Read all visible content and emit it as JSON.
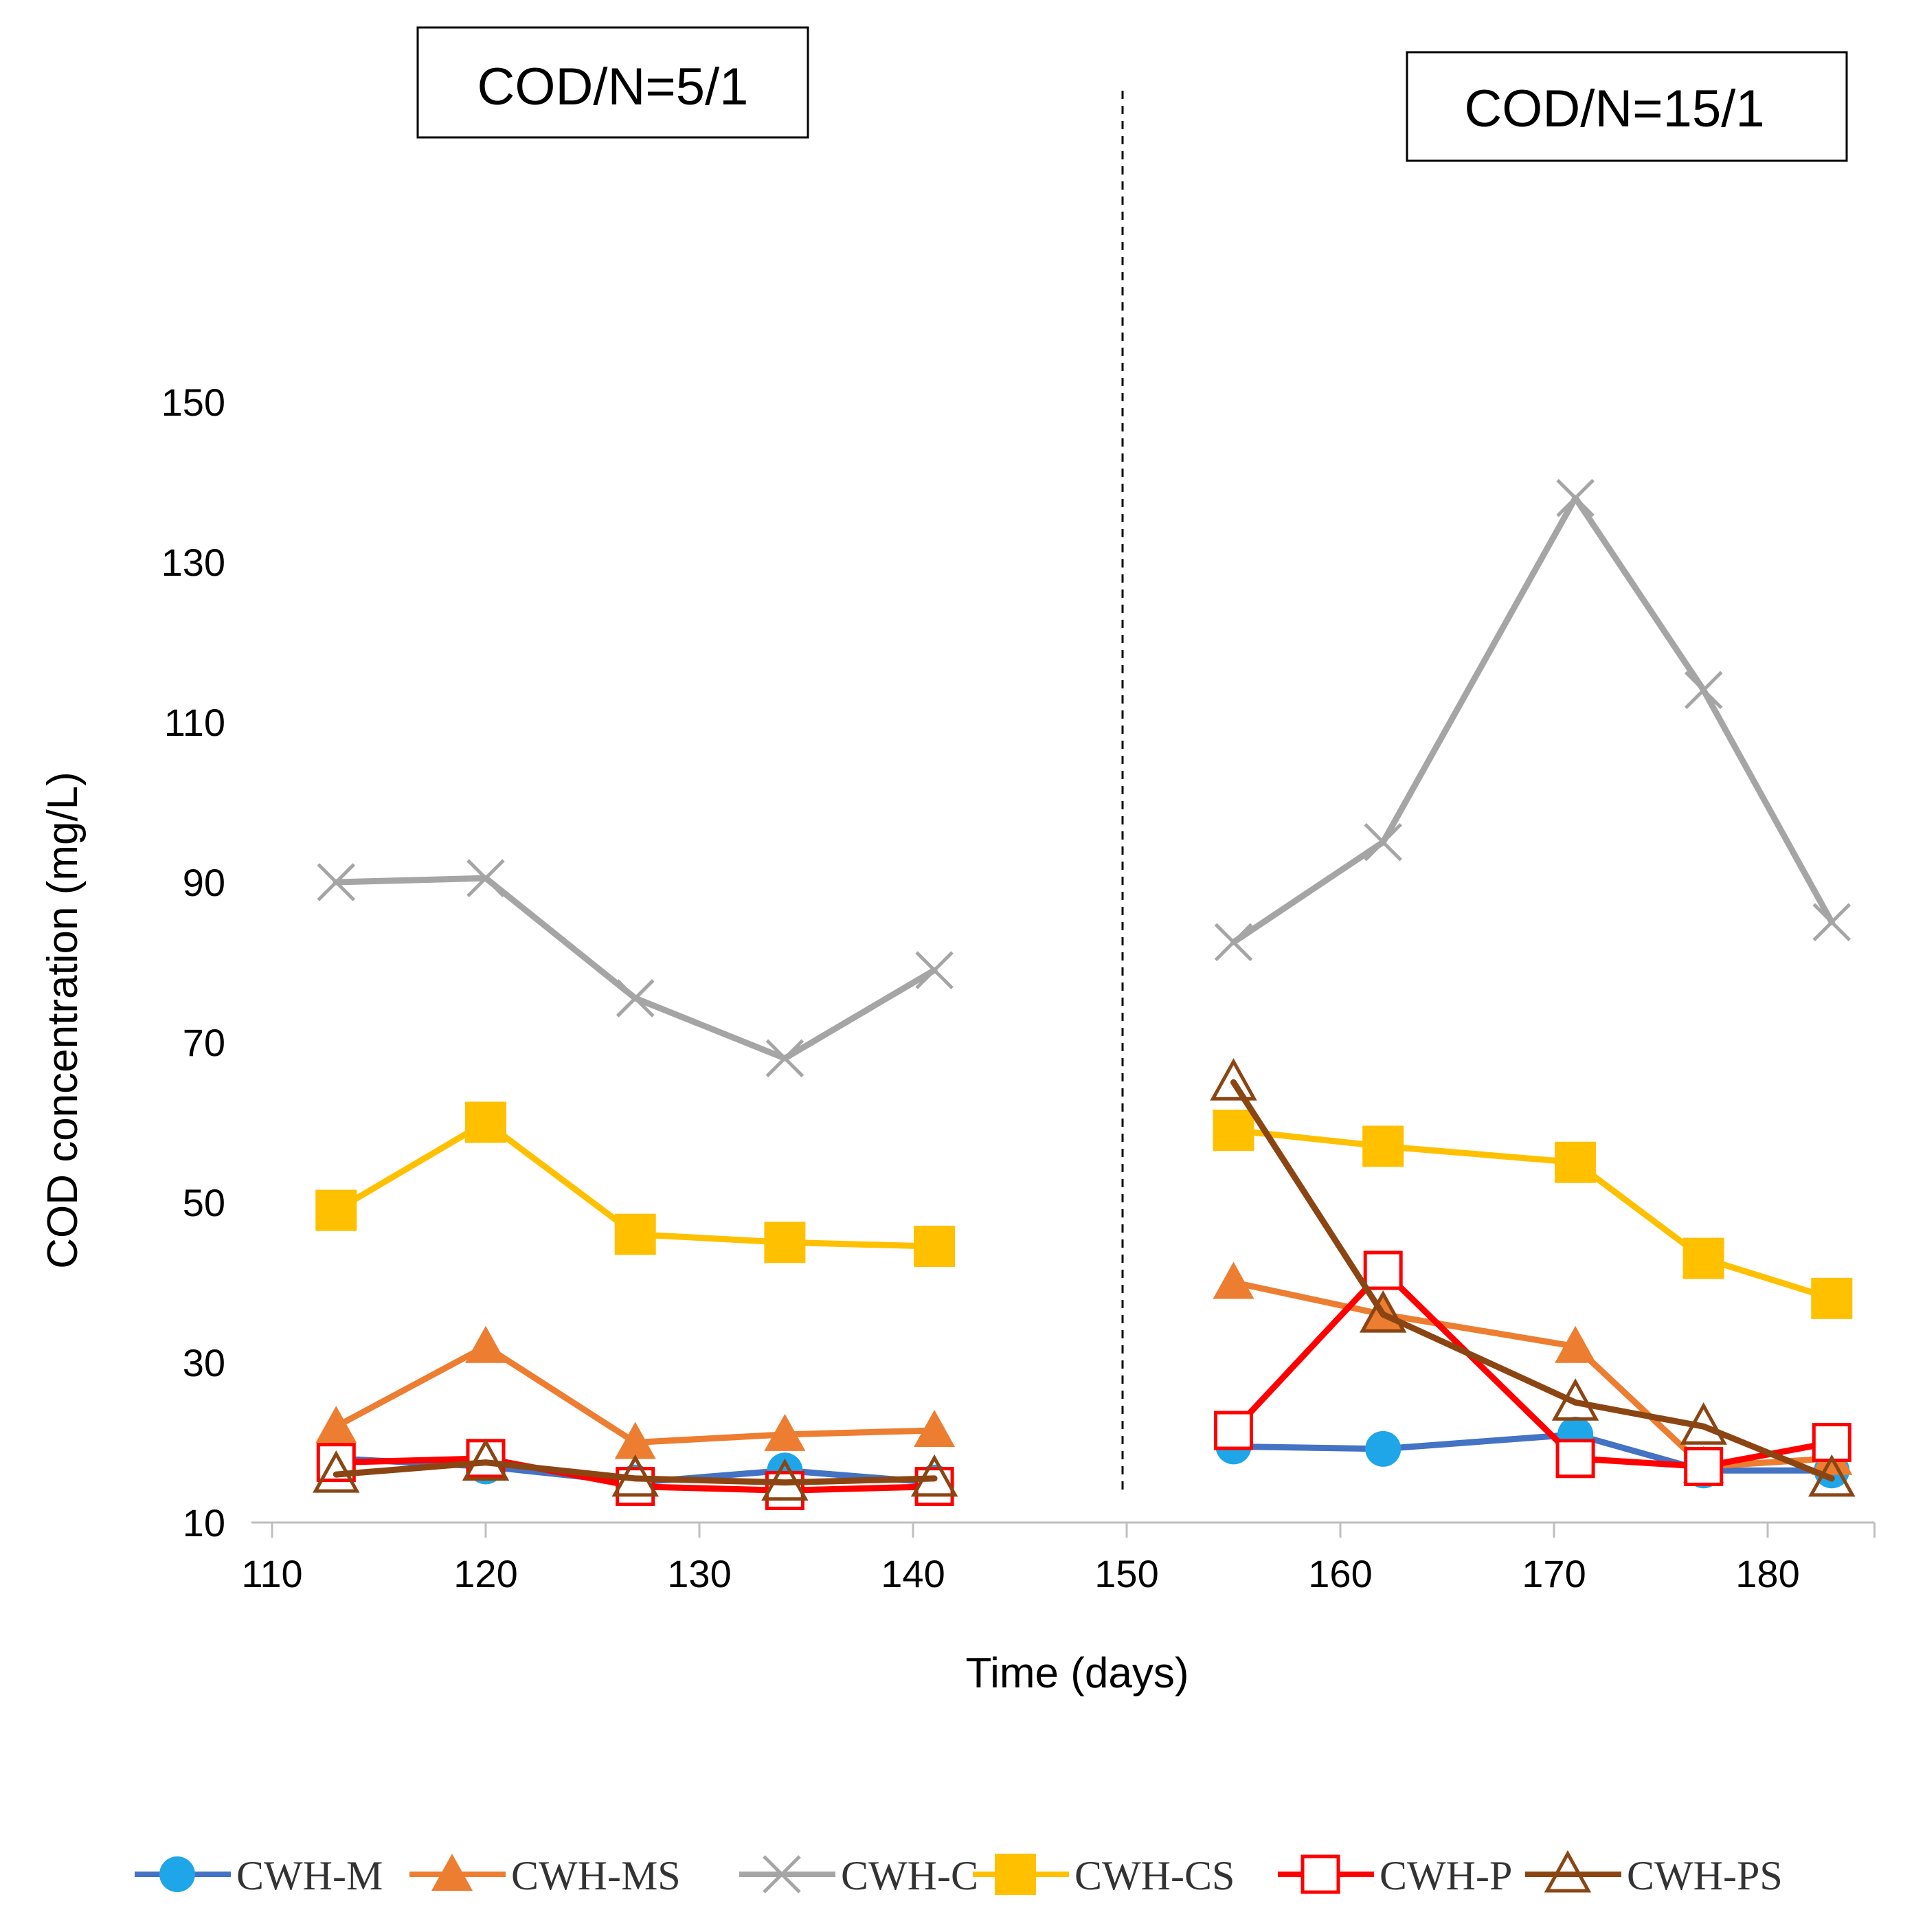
{
  "chart_data": {
    "type": "line",
    "xlabel": "Time (days)",
    "ylabel": "COD concentration (mg/L)",
    "xlim": [
      110,
      185
    ],
    "ylim": [
      10,
      160
    ],
    "x_ticks": [
      110,
      120,
      130,
      140,
      150,
      160,
      170,
      180
    ],
    "y_ticks": [
      10,
      30,
      50,
      70,
      90,
      110,
      130,
      150
    ],
    "grid": false,
    "legend_position": "bottom",
    "phase_divider_x": 150,
    "phase_labels": [
      "COD/N=5/1",
      "COD/N=15/1"
    ],
    "series": [
      {
        "name": "CWH-M",
        "color": "#1ea6e8",
        "line_color": "#4472c4",
        "marker": "circle-filled",
        "segments": [
          {
            "x": [
              113,
              120,
              127,
              134,
              141
            ],
            "y": [
              18,
              17,
              15,
              16.5,
              15
            ]
          },
          {
            "x": [
              155,
              162,
              171,
              177,
              183
            ],
            "y": [
              19.5,
              19.2,
              21,
              16.5,
              16.5
            ]
          }
        ]
      },
      {
        "name": "CWH-MS",
        "color": "#ed7d31",
        "line_color": "#ed7d31",
        "marker": "triangle-filled",
        "segments": [
          {
            "x": [
              113,
              120,
              127,
              134,
              141
            ],
            "y": [
              22,
              32,
              20,
              21,
              21.5
            ]
          },
          {
            "x": [
              155,
              162,
              171,
              177,
              183
            ],
            "y": [
              40,
              36,
              32,
              17,
              18
            ]
          }
        ]
      },
      {
        "name": "CWH-C",
        "color": "#a5a5a5",
        "line_color": "#a5a5a5",
        "marker": "x",
        "segments": [
          {
            "x": [
              113,
              120,
              127,
              134,
              141
            ],
            "y": [
              90,
              90.5,
              75.5,
              68,
              79
            ]
          },
          {
            "x": [
              155,
              162,
              171,
              177,
              183
            ],
            "y": [
              82.5,
              95,
              138,
              114,
              85
            ]
          }
        ]
      },
      {
        "name": "CWH-CS",
        "color": "#ffc000",
        "line_color": "#ffc000",
        "marker": "square-filled",
        "segments": [
          {
            "x": [
              113,
              120,
              127,
              134,
              141
            ],
            "y": [
              49,
              60,
              46,
              45,
              44.5
            ]
          },
          {
            "x": [
              155,
              162,
              171,
              177,
              183
            ],
            "y": [
              59,
              57,
              55,
              43,
              38
            ]
          }
        ]
      },
      {
        "name": "CWH-P",
        "color": "#ff0000",
        "line_color": "#ff0000",
        "marker": "square-open",
        "segments": [
          {
            "x": [
              113,
              120,
              127,
              134,
              141
            ],
            "y": [
              17.5,
              18,
              14.5,
              14,
              14.5
            ]
          },
          {
            "x": [
              155,
              162,
              171,
              177,
              183
            ],
            "y": [
              21.5,
              41.5,
              18,
              17,
              20
            ]
          }
        ]
      },
      {
        "name": "CWH-PS",
        "color": "#8b4513",
        "line_color": "#8b4513",
        "marker": "triangle-open",
        "segments": [
          {
            "x": [
              113,
              120,
              127,
              134,
              141
            ],
            "y": [
              16,
              17.5,
              15.5,
              15,
              15.5
            ]
          },
          {
            "x": [
              155,
              162,
              171,
              177,
              183
            ],
            "y": [
              65,
              36,
              25,
              22,
              15.5
            ]
          }
        ]
      }
    ]
  }
}
